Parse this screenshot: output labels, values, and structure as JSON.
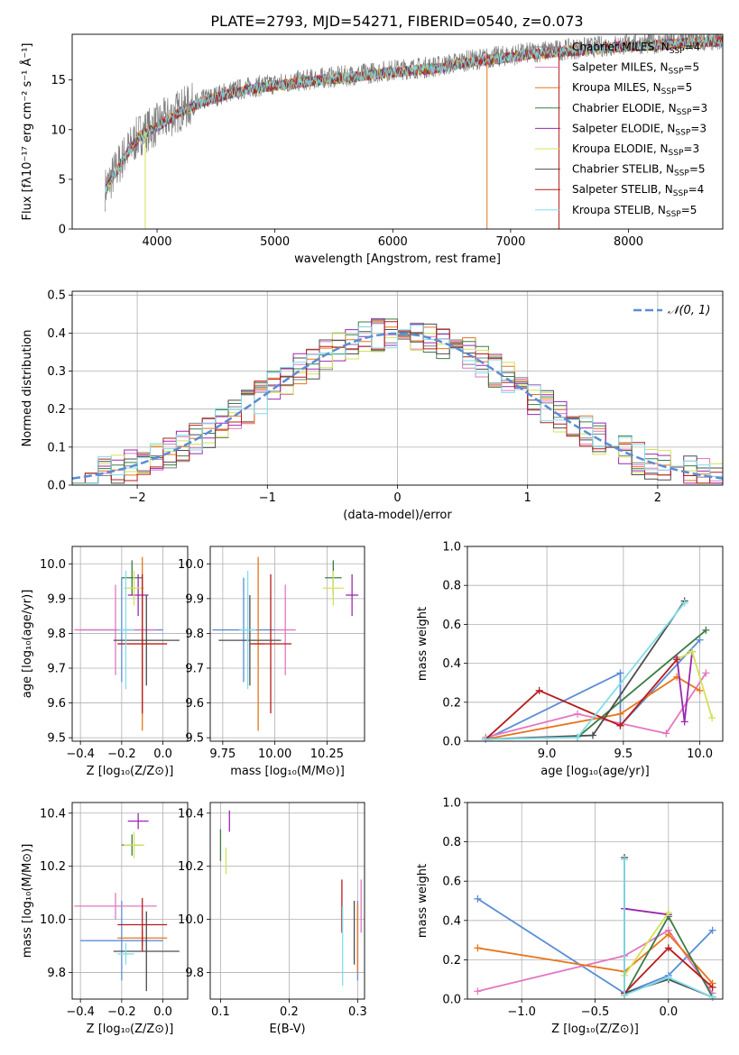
{
  "figure": {
    "title": "PLATE=2793, MJD=54271, FIBERID=0540, z=0.073"
  },
  "palette": [
    "#808080",
    "#e377c2",
    "#e8751a",
    "#3a7d44",
    "#9b27b0",
    "#d4e157",
    "#4d4d4d",
    "#b71c1c",
    "#80deea"
  ],
  "chart_data": [
    {
      "id": "spectrum",
      "type": "line",
      "xlabel": "wavelength [Angstrom, rest frame]",
      "ylabel": "Flux [fλ10⁻¹⁷ erg cm⁻² s⁻¹ Å⁻¹]",
      "xlim": [
        3280,
        8800
      ],
      "ylim": [
        0,
        19.6
      ],
      "xticks": [
        4000,
        5000,
        6000,
        7000,
        8000
      ],
      "yticks": [
        0,
        5,
        10,
        15
      ],
      "grid": false,
      "legend": "right",
      "observed_continuum": {
        "x": [
          3560,
          3700,
          3850,
          4000,
          4200,
          4400,
          4600,
          4800,
          5000,
          5200,
          5400,
          5600,
          5800,
          6000,
          6200,
          6400,
          6600,
          6800,
          7000,
          7200,
          7400,
          7600,
          7800,
          8000,
          8200,
          8400,
          8600,
          8800
        ],
        "y": [
          4.0,
          7.0,
          9.5,
          10.5,
          12.0,
          13.0,
          13.8,
          14.3,
          14.6,
          14.9,
          15.2,
          15.4,
          15.7,
          16.0,
          16.2,
          16.4,
          16.9,
          17.2,
          17.5,
          17.8,
          18.0,
          18.2,
          18.4,
          18.6,
          18.7,
          18.8,
          19.0,
          19.1
        ]
      },
      "series": [
        {
          "name": "Chabrier MILES, N_SSP=4",
          "legend_label": "Chabrier MILES, N",
          "legend_sub": "SSP",
          "legend_tail": "=4"
        },
        {
          "name": "Salpeter MILES, N_SSP=5",
          "legend_label": "Salpeter MILES, N",
          "legend_sub": "SSP",
          "legend_tail": "=5"
        },
        {
          "name": "Kroupa MILES, N_SSP=5",
          "legend_label": "Kroupa MILES, N",
          "legend_sub": "SSP",
          "legend_tail": "=5"
        },
        {
          "name": "Chabrier ELODIE, N_SSP=3",
          "legend_label": "Chabrier ELODIE, N",
          "legend_sub": "SSP",
          "legend_tail": "=3"
        },
        {
          "name": "Salpeter ELODIE, N_SSP=3",
          "legend_label": "Salpeter ELODIE, N",
          "legend_sub": "SSP",
          "legend_tail": "=3"
        },
        {
          "name": "Kroupa ELODIE, N_SSP=3",
          "legend_label": "Kroupa ELODIE, N",
          "legend_sub": "SSP",
          "legend_tail": "=3"
        },
        {
          "name": "Chabrier STELIB, N_SSP=5",
          "legend_label": "Chabrier STELIB, N",
          "legend_sub": "SSP",
          "legend_tail": "=5"
        },
        {
          "name": "Salpeter STELIB, N_SSP=4",
          "legend_label": "Salpeter STELIB, N",
          "legend_sub": "SSP",
          "legend_tail": "=4"
        },
        {
          "name": "Kroupa STELIB, N_SSP=5",
          "legend_label": "Kroupa STELIB, N",
          "legend_sub": "SSP",
          "legend_tail": "=5"
        }
      ]
    },
    {
      "id": "residuals",
      "type": "line",
      "xlabel": "(data-model)/error",
      "ylabel": "Normed distribution",
      "xlim": [
        -2.5,
        2.5
      ],
      "ylim": [
        0,
        0.51
      ],
      "xticks": [
        -2,
        -1,
        0,
        1,
        2
      ],
      "yticks": [
        0.0,
        0.1,
        0.2,
        0.3,
        0.4,
        0.5
      ],
      "grid": true,
      "legend": "top-right",
      "reference": {
        "name": "N(0,1)",
        "legend_label": "𝒩(0, 1)",
        "mean": 0,
        "sigma": 1,
        "color": "#5b8dd6"
      },
      "bin_width": 0.1
    },
    {
      "id": "age_vs_Z",
      "type": "scatter",
      "xlabel": "Z [log₁₀(Z/Z⊙)]",
      "ylabel": "age  [log₁₀(age/yr)]",
      "xlim": [
        -0.44,
        0.12
      ],
      "ylim": [
        9.49,
        10.05
      ],
      "xticks": [
        -0.4,
        -0.2,
        0.0
      ],
      "yticks": [
        9.5,
        9.6,
        9.7,
        9.8,
        9.9,
        10.0
      ],
      "grid": true,
      "points": [
        {
          "x": -0.2,
          "y": 9.81,
          "xerr": 0.2,
          "yerr": 0.15,
          "color": "#5b8dd6"
        },
        {
          "x": -0.23,
          "y": 9.81,
          "xerr": 0.2,
          "yerr": 0.13,
          "color": "#e377c2"
        },
        {
          "x": -0.1,
          "y": 9.77,
          "xerr": 0.12,
          "yerr": 0.25,
          "color": "#e8751a"
        },
        {
          "x": -0.15,
          "y": 9.96,
          "xerr": 0.05,
          "yerr": 0.05,
          "color": "#3a7d44"
        },
        {
          "x": -0.12,
          "y": 9.91,
          "xerr": 0.05,
          "yerr": 0.06,
          "color": "#9b27b0"
        },
        {
          "x": -0.14,
          "y": 9.93,
          "xerr": 0.05,
          "yerr": 0.05,
          "color": "#d4e157"
        },
        {
          "x": -0.08,
          "y": 9.78,
          "xerr": 0.16,
          "yerr": 0.13,
          "color": "#4d4d4d"
        },
        {
          "x": -0.1,
          "y": 9.77,
          "xerr": 0.12,
          "yerr": 0.2,
          "color": "#b71c1c"
        },
        {
          "x": -0.18,
          "y": 9.81,
          "xerr": 0.04,
          "yerr": 0.17,
          "color": "#80deea"
        }
      ]
    },
    {
      "id": "age_vs_mass",
      "type": "scatter",
      "xlabel": "mass [log₁₀(M/M⊙)]",
      "ylabel": "",
      "xlim": [
        9.69,
        10.43
      ],
      "ylim": [
        9.49,
        10.05
      ],
      "xticks": [
        9.75,
        10.0,
        10.25
      ],
      "yticks": [
        9.5,
        9.6,
        9.7,
        9.8,
        9.9,
        10.0
      ],
      "grid": true,
      "points": [
        {
          "x": 9.85,
          "y": 9.81,
          "xerr": 0.15,
          "yerr": 0.15,
          "color": "#5b8dd6"
        },
        {
          "x": 10.05,
          "y": 9.81,
          "xerr": 0.05,
          "yerr": 0.13,
          "color": "#e377c2"
        },
        {
          "x": 9.92,
          "y": 9.77,
          "xerr": 0.03,
          "yerr": 0.25,
          "color": "#e8751a"
        },
        {
          "x": 10.28,
          "y": 9.96,
          "xerr": 0.04,
          "yerr": 0.05,
          "color": "#3a7d44"
        },
        {
          "x": 10.37,
          "y": 9.91,
          "xerr": 0.03,
          "yerr": 0.06,
          "color": "#9b27b0"
        },
        {
          "x": 10.28,
          "y": 9.93,
          "xerr": 0.05,
          "yerr": 0.05,
          "color": "#d4e157"
        },
        {
          "x": 9.88,
          "y": 9.78,
          "xerr": 0.15,
          "yerr": 0.13,
          "color": "#4d4d4d"
        },
        {
          "x": 9.98,
          "y": 9.77,
          "xerr": 0.1,
          "yerr": 0.2,
          "color": "#b71c1c"
        },
        {
          "x": 9.87,
          "y": 9.81,
          "xerr": 0.04,
          "yerr": 0.17,
          "color": "#80deea"
        }
      ]
    },
    {
      "id": "weight_vs_age",
      "type": "line",
      "xlabel": "age  [log₁₀(age/yr)]",
      "ylabel": "mass weight",
      "xlim": [
        8.48,
        10.15
      ],
      "ylim": [
        0,
        1.0
      ],
      "xticks": [
        9.0,
        9.5,
        10.0
      ],
      "yticks": [
        0.0,
        0.2,
        0.4,
        0.6,
        0.8,
        1.0
      ],
      "grid": true,
      "series": [
        {
          "color": "#5b8dd6",
          "points": [
            [
              8.6,
              0.01
            ],
            [
              9.48,
              0.35
            ],
            [
              9.48,
              0.08
            ],
            [
              10.0,
              0.52
            ]
          ]
        },
        {
          "color": "#e377c2",
          "points": [
            [
              8.6,
              0.02
            ],
            [
              9.2,
              0.14
            ],
            [
              9.78,
              0.04
            ],
            [
              10.04,
              0.35
            ]
          ]
        },
        {
          "color": "#e8751a",
          "points": [
            [
              8.6,
              0.01
            ],
            [
              9.48,
              0.14
            ],
            [
              9.85,
              0.33
            ],
            [
              10.0,
              0.26
            ]
          ]
        },
        {
          "color": "#3a7d44",
          "points": [
            [
              8.6,
              0.01
            ],
            [
              9.2,
              0.02
            ],
            [
              10.04,
              0.57
            ]
          ]
        },
        {
          "color": "#9b27b0",
          "points": [
            [
              9.85,
              0.43
            ],
            [
              9.9,
              0.1
            ],
            [
              9.95,
              0.46
            ]
          ]
        },
        {
          "color": "#d4e157",
          "points": [
            [
              9.85,
              0.42
            ],
            [
              9.95,
              0.46
            ],
            [
              10.08,
              0.12
            ]
          ]
        },
        {
          "color": "#4d4d4d",
          "points": [
            [
              8.6,
              0.01
            ],
            [
              9.3,
              0.03
            ],
            [
              9.9,
              0.72
            ]
          ]
        },
        {
          "color": "#b71c1c",
          "points": [
            [
              8.6,
              0.01
            ],
            [
              8.95,
              0.26
            ],
            [
              9.48,
              0.08
            ],
            [
              9.85,
              0.42
            ]
          ]
        },
        {
          "color": "#80deea",
          "points": [
            [
              8.6,
              0.01
            ],
            [
              9.2,
              0.02
            ],
            [
              9.9,
              0.71
            ]
          ]
        }
      ]
    },
    {
      "id": "mass_vs_Z",
      "type": "scatter",
      "xlabel": "Z [log₁₀(Z/Z⊙)]",
      "ylabel": "mass [log₁₀(M/M⊙)]",
      "xlim": [
        -0.44,
        0.12
      ],
      "ylim": [
        9.7,
        10.44
      ],
      "xticks": [
        -0.4,
        -0.2,
        0.0
      ],
      "yticks": [
        9.8,
        10.0,
        10.2,
        10.4
      ],
      "grid": true,
      "points": [
        {
          "x": -0.2,
          "y": 9.92,
          "xerr": 0.2,
          "yerr": 0.15,
          "color": "#5b8dd6"
        },
        {
          "x": -0.23,
          "y": 10.05,
          "xerr": 0.2,
          "yerr": 0.05,
          "color": "#e377c2"
        },
        {
          "x": -0.1,
          "y": 9.93,
          "xerr": 0.12,
          "yerr": 0.03,
          "color": "#e8751a"
        },
        {
          "x": -0.15,
          "y": 10.28,
          "xerr": 0.05,
          "yerr": 0.04,
          "color": "#3a7d44"
        },
        {
          "x": -0.12,
          "y": 10.37,
          "xerr": 0.05,
          "yerr": 0.03,
          "color": "#9b27b0"
        },
        {
          "x": -0.14,
          "y": 10.28,
          "xerr": 0.05,
          "yerr": 0.05,
          "color": "#d4e157"
        },
        {
          "x": -0.08,
          "y": 9.88,
          "xerr": 0.16,
          "yerr": 0.15,
          "color": "#4d4d4d"
        },
        {
          "x": -0.1,
          "y": 9.98,
          "xerr": 0.12,
          "yerr": 0.1,
          "color": "#b71c1c"
        },
        {
          "x": -0.18,
          "y": 9.87,
          "xerr": 0.04,
          "yerr": 0.04,
          "color": "#80deea"
        }
      ]
    },
    {
      "id": "mass_vs_EBV",
      "type": "scatter",
      "xlabel": "E(B-V)",
      "ylabel": "",
      "xlim": [
        0.085,
        0.31
      ],
      "ylim": [
        9.7,
        10.44
      ],
      "xticks": [
        0.1,
        0.2,
        0.3
      ],
      "yticks": [
        9.8,
        10.0,
        10.2,
        10.4
      ],
      "grid": true,
      "points": [
        {
          "x": 0.3,
          "y": 9.92,
          "xerr": 0,
          "yerr": 0.15,
          "color": "#5b8dd6"
        },
        {
          "x": 0.305,
          "y": 10.05,
          "xerr": 0,
          "yerr": 0.1,
          "color": "#e377c2"
        },
        {
          "x": 0.3,
          "y": 9.93,
          "xerr": 0,
          "yerr": 0.13,
          "color": "#e8751a"
        },
        {
          "x": 0.1,
          "y": 10.28,
          "xerr": 0,
          "yerr": 0.06,
          "color": "#3a7d44"
        },
        {
          "x": 0.113,
          "y": 10.37,
          "xerr": 0,
          "yerr": 0.04,
          "color": "#9b27b0"
        },
        {
          "x": 0.108,
          "y": 10.22,
          "xerr": 0,
          "yerr": 0.05,
          "color": "#d4e157"
        },
        {
          "x": 0.295,
          "y": 9.95,
          "xerr": 0,
          "yerr": 0.12,
          "color": "#4d4d4d"
        },
        {
          "x": 0.277,
          "y": 10.05,
          "xerr": 0,
          "yerr": 0.1,
          "color": "#b71c1c"
        },
        {
          "x": 0.278,
          "y": 9.9,
          "xerr": 0,
          "yerr": 0.15,
          "color": "#80deea"
        }
      ]
    },
    {
      "id": "weight_vs_Z",
      "type": "line",
      "xlabel": "Z [log₁₀(Z/Z⊙)]",
      "ylabel": "mass weight",
      "xlim": [
        -1.37,
        0.37
      ],
      "ylim": [
        0,
        1.0
      ],
      "xticks": [
        -1.0,
        -0.5,
        0.0
      ],
      "yticks": [
        0.0,
        0.2,
        0.4,
        0.6,
        0.8,
        1.0
      ],
      "grid": true,
      "series": [
        {
          "color": "#5b8dd6",
          "points": [
            [
              -1.3,
              0.51
            ],
            [
              -0.3,
              0.03
            ],
            [
              0.0,
              0.12
            ],
            [
              0.3,
              0.35
            ]
          ]
        },
        {
          "color": "#e377c2",
          "points": [
            [
              -1.3,
              0.04
            ],
            [
              -0.3,
              0.22
            ],
            [
              0.0,
              0.35
            ],
            [
              0.3,
              0.03
            ]
          ]
        },
        {
          "color": "#e8751a",
          "points": [
            [
              -1.3,
              0.26
            ],
            [
              -0.3,
              0.14
            ],
            [
              0.0,
              0.33
            ],
            [
              0.3,
              0.08
            ]
          ]
        },
        {
          "color": "#3a7d44",
          "points": [
            [
              -0.3,
              0.02
            ],
            [
              0.0,
              0.42
            ],
            [
              0.3,
              0.01
            ]
          ]
        },
        {
          "color": "#9b27b0",
          "points": [
            [
              -0.3,
              0.46
            ],
            [
              0.0,
              0.43
            ]
          ]
        },
        {
          "color": "#d4e157",
          "points": [
            [
              -0.3,
              0.12
            ],
            [
              0.0,
              0.44
            ]
          ]
        },
        {
          "color": "#4d4d4d",
          "points": [
            [
              -0.3,
              0.72
            ],
            [
              -0.3,
              0.03
            ],
            [
              0.0,
              0.1
            ],
            [
              0.3,
              0.01
            ]
          ]
        },
        {
          "color": "#b71c1c",
          "points": [
            [
              -0.3,
              0.03
            ],
            [
              0.0,
              0.26
            ],
            [
              0.3,
              0.06
            ]
          ]
        },
        {
          "color": "#80deea",
          "points": [
            [
              -0.3,
              0.71
            ],
            [
              -0.3,
              0.02
            ],
            [
              0.0,
              0.11
            ],
            [
              0.3,
              0.01
            ]
          ]
        }
      ]
    }
  ]
}
